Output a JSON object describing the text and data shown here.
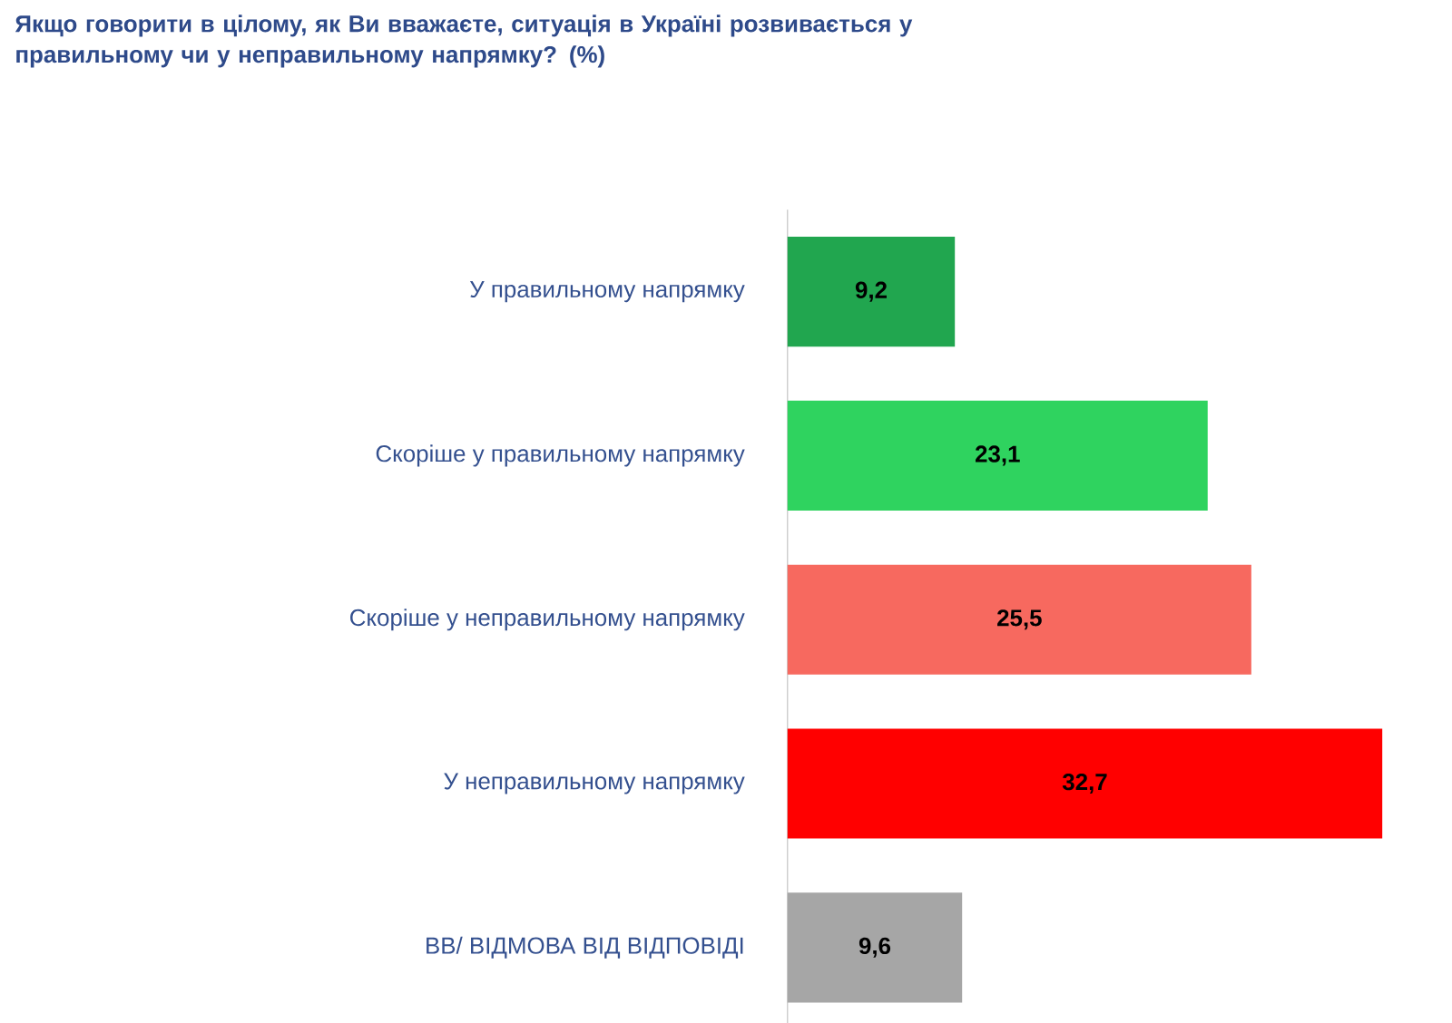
{
  "chart_data": {
    "type": "bar",
    "orientation": "horizontal",
    "title": "Якщо говорити в цілому, як Ви вважаєте, ситуація в Україні розвивається у правильному чи у неправильному напрямку? (%)",
    "categories": [
      "У правильному напрямку",
      "Скоріше у правильному напрямку",
      "Скоріше у неправильному напрямку",
      "У неправильному напрямку",
      "ВВ/ ВІДМОВА ВІД ВІДПОВІДІ"
    ],
    "values": [
      9.2,
      23.1,
      25.5,
      32.7,
      9.6
    ],
    "colors": [
      "#21a64f",
      "#2fd35f",
      "#f7695f",
      "#ff0000",
      "#a6a6a6"
    ],
    "value_labels": [
      "9,2",
      "23,1",
      "25,5",
      "32,7",
      "9,6"
    ]
  }
}
